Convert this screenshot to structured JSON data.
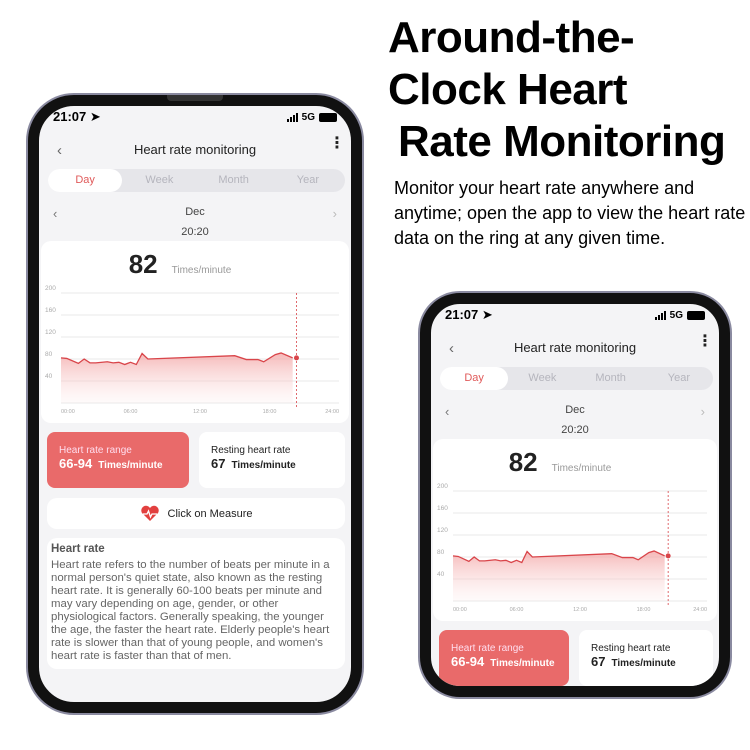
{
  "headline": {
    "line1": "Around-the-",
    "line2": "Clock Heart",
    "line3": "Rate Monitoring"
  },
  "subtitle": "Monitor your heart rate anywhere and anytime; open the app to view the heart rate data on the ring at any given time.",
  "app": {
    "status": {
      "time": "21:07",
      "network": "5G",
      "icons": [
        "location-arrow-icon",
        "signal-icon",
        "battery-icon"
      ]
    },
    "header": {
      "title": "Heart rate monitoring",
      "back": "‹",
      "more": "⋮"
    },
    "tabs": [
      {
        "label": "Day",
        "active": true
      },
      {
        "label": "Week"
      },
      {
        "label": "Month"
      },
      {
        "label": "Year"
      }
    ],
    "date": "Dec",
    "selected_time": "20:20",
    "current": {
      "value": "82",
      "unit": "Times/minute"
    },
    "range": {
      "label": "Heart rate range",
      "value": "66-94",
      "unit": "Times/minute"
    },
    "resting": {
      "label": "Resting heart rate",
      "value": "67",
      "unit": "Times/minute"
    },
    "measure": {
      "label": "Click on Measure",
      "icon": "heart-pulse-icon"
    },
    "info": {
      "title": "Heart rate",
      "body": "Heart rate refers to the number of beats per minute in a normal person's quiet state, also known as the resting heart rate. It is generally 60-100 beats per minute and may vary depending on age, gender, or other physiological factors. Generally speaking, the younger the age, the faster the heart rate. Elderly people's heart rate is slower than that of young people, and women's heart rate is faster than that of men."
    },
    "colors": {
      "accent": "#e96a6a",
      "line": "#d9454a",
      "tab_active": "#e05a5a"
    }
  },
  "chart_data": {
    "type": "area",
    "xlim": [
      0,
      24
    ],
    "ylim": [
      0,
      200
    ],
    "yticks": [
      "40",
      "80",
      "120",
      "160",
      "200"
    ],
    "xticks": [
      "00:00",
      "06:00",
      "12:00",
      "18:00",
      "24:00"
    ],
    "grid": true,
    "x": [
      0,
      0.5,
      1.5,
      2,
      2.5,
      3,
      4,
      4.5,
      5,
      5.5,
      6,
      6.5,
      7,
      7.5,
      15,
      16,
      17,
      17.5,
      18.5,
      19,
      20
    ],
    "y": [
      82,
      81,
      72,
      80,
      73,
      73,
      75,
      73,
      74,
      70,
      74,
      70,
      90,
      80,
      86,
      79,
      79,
      75,
      88,
      91,
      82
    ],
    "marker_x": 20.33
  }
}
